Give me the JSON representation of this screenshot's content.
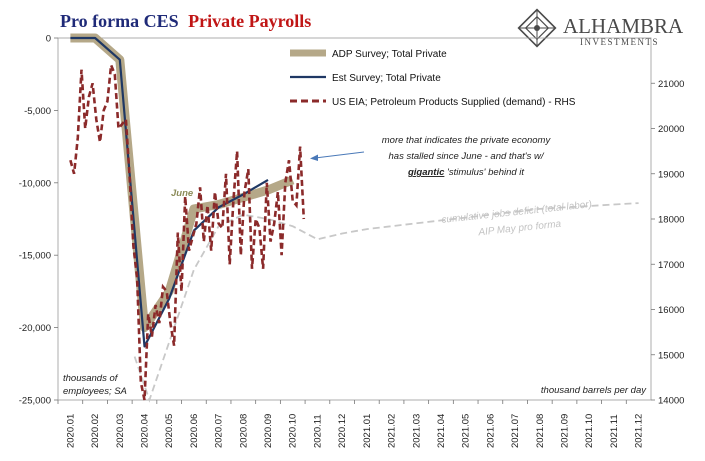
{
  "header": {
    "title_part1": "Pro forma CES",
    "title_part2": "Private Payrolls",
    "title_color1": "#1f2a78",
    "title_color2": "#c01515"
  },
  "brand": {
    "name": "ALHAMBRA",
    "sub": "INVESTMENTS",
    "icon": "alhambra-diamond-logo"
  },
  "colors": {
    "adp": "#b5a888",
    "est": "#1f3864",
    "eia": "#8b2a2a",
    "deficit": "#c8c8c8",
    "annotation_arrow": "#4a79b8",
    "june_label": "#8c8c5a"
  },
  "chart_data": {
    "type": "line",
    "title": "Pro forma CES Private Payrolls",
    "categories": [
      "2020.01",
      "2020.02",
      "2020.03",
      "2020.04",
      "2020.05",
      "2020.06",
      "2020.07",
      "2020.08",
      "2020.09",
      "2020.10",
      "2020.11",
      "2020.12",
      "2021.01",
      "2021.02",
      "2021.03",
      "2021.04",
      "2021.05",
      "2021.06",
      "2021.07",
      "2021.08",
      "2021.09",
      "2021.10",
      "2021.11",
      "2021.12"
    ],
    "ylim_left": [
      -25000,
      0
    ],
    "yticks_left": [
      0,
      -5000,
      -10000,
      -15000,
      -20000,
      -25000
    ],
    "ytick_labels_left": [
      "0",
      "-5,000",
      "-10,000",
      "-15,000",
      "-20,000",
      "-25,000"
    ],
    "ylim_right": [
      14000,
      22000
    ],
    "yticks_right": [
      14000,
      15000,
      16000,
      17000,
      18000,
      19000,
      20000,
      21000
    ],
    "ytick_labels_right": [
      "14000",
      "15000",
      "16000",
      "17000",
      "18000",
      "19000",
      "20000",
      "21000"
    ],
    "left_axis_note": "thousands of employees; SA",
    "right_axis_note": "thousand barrels per day",
    "legend": [
      "ADP Survey; Total Private",
      "Est Survey; Total Private",
      "US EIA; Petroleum Products Supplied (demand) - RHS"
    ],
    "legend_position": "top-center",
    "series": [
      {
        "name": "ADP Survey; Total Private",
        "axis": "left",
        "style": "thick",
        "x": [
          0,
          1,
          2,
          3,
          4,
          5,
          6,
          7,
          8,
          9
        ],
        "y": [
          0,
          0,
          -1500,
          -20000,
          -17500,
          -11800,
          -11500,
          -11000,
          -10500,
          -9800
        ]
      },
      {
        "name": "Est Survey; Total Private",
        "axis": "left",
        "style": "solid",
        "x": [
          0,
          1,
          2,
          3,
          4,
          5,
          6,
          7,
          8
        ],
        "y": [
          0,
          0,
          -1500,
          -21300,
          -18000,
          -13300,
          -11700,
          -10800,
          -9800
        ]
      },
      {
        "name": "US EIA; Petroleum Products Supplied (demand) - RHS",
        "axis": "right",
        "style": "dashed",
        "x": [
          0,
          0.15,
          0.3,
          0.45,
          0.6,
          0.75,
          0.9,
          1.05,
          1.2,
          1.35,
          1.5,
          1.65,
          1.8,
          1.95,
          2.1,
          2.25,
          2.4,
          2.55,
          2.7,
          2.85,
          3.0,
          3.15,
          3.3,
          3.45,
          3.6,
          3.75,
          3.9,
          4.05,
          4.2,
          4.35,
          4.5,
          4.65,
          4.8,
          4.95,
          5.1,
          5.25,
          5.4,
          5.55,
          5.7,
          5.85,
          6.0,
          6.15,
          6.3,
          6.45,
          6.6,
          6.75,
          6.9,
          7.05,
          7.2,
          7.35,
          7.5,
          7.65,
          7.8,
          7.95,
          8.1,
          8.25,
          8.4,
          8.55,
          8.7,
          8.85,
          9.0,
          9.15,
          9.3,
          9.45
        ],
        "y": [
          19300,
          19000,
          19800,
          21300,
          20000,
          20700,
          21000,
          20200,
          19700,
          20400,
          20600,
          21400,
          21200,
          20000,
          20100,
          20200,
          18900,
          17400,
          16700,
          14400,
          14000,
          15900,
          15400,
          16100,
          15700,
          16500,
          16400,
          15700,
          15200,
          17700,
          16400,
          18500,
          17300,
          17600,
          17900,
          18700,
          17500,
          18300,
          17300,
          18600,
          17900,
          17800,
          19000,
          17000,
          18400,
          19500,
          17200,
          18600,
          19100,
          16900,
          18000,
          17800,
          16900,
          18800,
          17500,
          17900,
          18600,
          17200,
          18800,
          19300,
          18400,
          18300,
          19600,
          18000
        ]
      },
      {
        "name": "cumulative jobs deficit (total labor)",
        "axis": "left",
        "style": "dashed-gray",
        "x": [
          2.6,
          3.2,
          4.0,
          5.0,
          6.0,
          7.0,
          8.0,
          9.0,
          10.0,
          11,
          12,
          13,
          14,
          15,
          16,
          17,
          18,
          19,
          20,
          21,
          22,
          23
        ],
        "y": [
          -22000,
          -25000,
          -21000,
          -16000,
          -13000,
          -12200,
          -12500,
          -13000,
          -13900,
          -13500,
          -13200,
          -13000,
          -12800,
          -12600,
          -12400,
          -12200,
          -12000,
          -11800,
          -11700,
          -11600,
          -11500,
          -11400
        ]
      }
    ],
    "annotations": {
      "june": "June",
      "comment_line1": "more that indicates the private economy",
      "comment_line2": "has stalled since June - and that's w/",
      "comment_bold": "gigantic",
      "comment_tail": " 'stimulus' behind it",
      "deficit_label1": "cumulative jobs deficit (total labor)",
      "deficit_label2": "AIP May pro forma"
    }
  }
}
